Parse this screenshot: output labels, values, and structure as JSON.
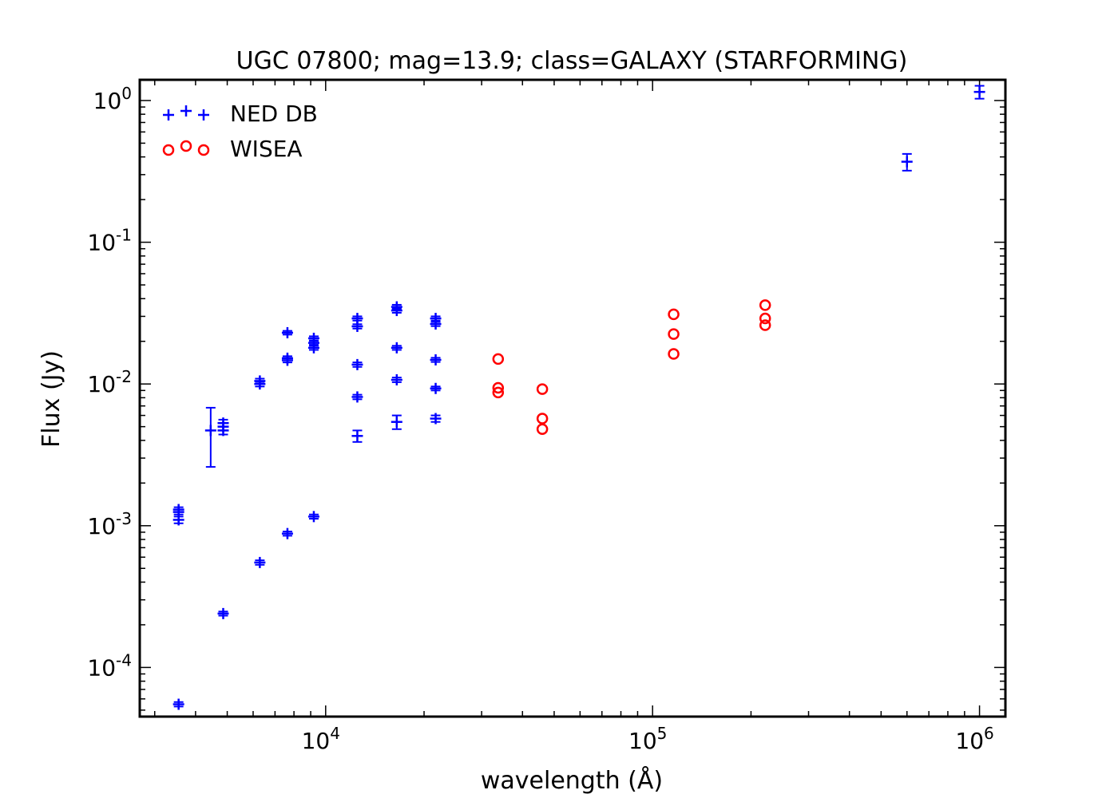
{
  "chart_data": {
    "type": "scatter",
    "title": "UGC 07800; mag=13.9; class=GALAXY (STARFORMING)",
    "xlabel": "wavelength (Å)",
    "ylabel": "Flux (Jy)",
    "xscale": "log",
    "yscale": "log",
    "xlim": [
      2700,
      1200000
    ],
    "ylim": [
      4.5e-05,
      1.4
    ],
    "xticks": [
      {
        "value": 10000,
        "base": "10",
        "exp": "4"
      },
      {
        "value": 100000,
        "base": "10",
        "exp": "5"
      },
      {
        "value": 1000000,
        "base": "10",
        "exp": "6"
      }
    ],
    "yticks": [
      {
        "value": 0.0001,
        "base": "10",
        "exp": "-4"
      },
      {
        "value": 0.001,
        "base": "10",
        "exp": "-3"
      },
      {
        "value": 0.01,
        "base": "10",
        "exp": "-2"
      },
      {
        "value": 0.1,
        "base": "10",
        "exp": "-1"
      },
      {
        "value": 1,
        "base": "10",
        "exp": "0"
      }
    ],
    "legend_position": "top-left",
    "series": [
      {
        "name": "NED DB",
        "marker": "plus",
        "color": "#0000ff",
        "points": [
          {
            "x": 3550,
            "y": 0.0013,
            "err": 5e-05
          },
          {
            "x": 3550,
            "y": 0.00125,
            "err": 5e-05
          },
          {
            "x": 3550,
            "y": 0.0011,
            "err": 6e-05
          },
          {
            "x": 3550,
            "y": 5.5e-05,
            "err": 2e-06
          },
          {
            "x": 4450,
            "y": 0.0047,
            "err": 0.0021
          },
          {
            "x": 4860,
            "y": 0.0053,
            "err": 0.0003
          },
          {
            "x": 4860,
            "y": 0.005,
            "err": 0.0003
          },
          {
            "x": 4860,
            "y": 0.0047,
            "err": 0.0003
          },
          {
            "x": 4860,
            "y": 0.00024,
            "err": 8e-06
          },
          {
            "x": 6290,
            "y": 0.0105,
            "err": 0.0004
          },
          {
            "x": 6290,
            "y": 0.01,
            "err": 0.0004
          },
          {
            "x": 6290,
            "y": 0.00055,
            "err": 2e-05
          },
          {
            "x": 7640,
            "y": 0.023,
            "err": 0.0007
          },
          {
            "x": 7640,
            "y": 0.0152,
            "err": 0.0005
          },
          {
            "x": 7640,
            "y": 0.0147,
            "err": 0.0005
          },
          {
            "x": 7640,
            "y": 0.00088,
            "err": 3e-05
          },
          {
            "x": 9200,
            "y": 0.021,
            "err": 0.0007
          },
          {
            "x": 9200,
            "y": 0.0195,
            "err": 0.0006
          },
          {
            "x": 9200,
            "y": 0.018,
            "err": 0.0006
          },
          {
            "x": 9200,
            "y": 0.00116,
            "err": 4e-05
          },
          {
            "x": 12500,
            "y": 0.029,
            "err": 0.001
          },
          {
            "x": 12500,
            "y": 0.0255,
            "err": 0.0009
          },
          {
            "x": 12500,
            "y": 0.0137,
            "err": 0.0005
          },
          {
            "x": 12500,
            "y": 0.0081,
            "err": 0.0003
          },
          {
            "x": 12500,
            "y": 0.0043,
            "err": 0.0004
          },
          {
            "x": 16500,
            "y": 0.035,
            "err": 0.0012
          },
          {
            "x": 16500,
            "y": 0.033,
            "err": 0.0012
          },
          {
            "x": 16500,
            "y": 0.018,
            "err": 0.0006
          },
          {
            "x": 16500,
            "y": 0.0107,
            "err": 0.0004
          },
          {
            "x": 16500,
            "y": 0.0054,
            "err": 0.0006
          },
          {
            "x": 21700,
            "y": 0.029,
            "err": 0.001
          },
          {
            "x": 21700,
            "y": 0.0265,
            "err": 0.0009
          },
          {
            "x": 21700,
            "y": 0.0148,
            "err": 0.0005
          },
          {
            "x": 21700,
            "y": 0.0093,
            "err": 0.0003
          },
          {
            "x": 21700,
            "y": 0.0057,
            "err": 0.0003
          },
          {
            "x": 600000,
            "y": 0.37,
            "err": 0.05
          },
          {
            "x": 1000000,
            "y": 1.15,
            "err": 0.12
          }
        ]
      },
      {
        "name": "WISEA",
        "marker": "circle",
        "color": "#ff0000",
        "points": [
          {
            "x": 33700,
            "y": 0.015
          },
          {
            "x": 33700,
            "y": 0.0094
          },
          {
            "x": 33700,
            "y": 0.0087
          },
          {
            "x": 46000,
            "y": 0.0092
          },
          {
            "x": 46000,
            "y": 0.0057
          },
          {
            "x": 46000,
            "y": 0.0048
          },
          {
            "x": 116000,
            "y": 0.031
          },
          {
            "x": 116000,
            "y": 0.0225
          },
          {
            "x": 116000,
            "y": 0.0163
          },
          {
            "x": 221000,
            "y": 0.036
          },
          {
            "x": 221000,
            "y": 0.029
          },
          {
            "x": 221000,
            "y": 0.026
          }
        ]
      }
    ]
  }
}
